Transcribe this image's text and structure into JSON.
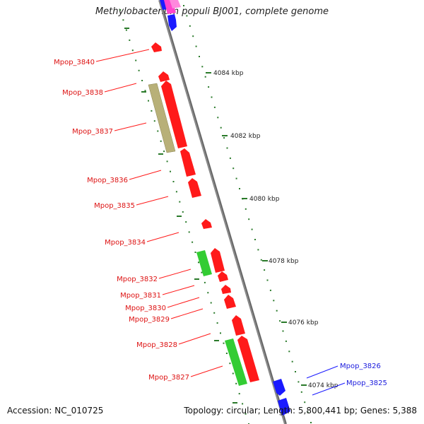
{
  "title": "Methylobacterium populi BJ001, complete genome",
  "footer": {
    "accession": "Accession: NC_010725",
    "summary": "Topology: circular; Length: 5,800,441 bp; Genes: 5,388"
  },
  "ticks": [
    "4084 kbp",
    "4082 kbp",
    "4080 kbp",
    "4078 kbp",
    "4076 kbp",
    "4074 kbp"
  ],
  "genes": [
    {
      "id": "Mpop_3840",
      "strand": "reverse",
      "color": "#ff1a1a"
    },
    {
      "id": "Mpop_3838",
      "strand": "reverse",
      "color": "#ff1a1a"
    },
    {
      "id": "Mpop_3837",
      "strand": "reverse",
      "color": "#ff1a1a"
    },
    {
      "id": "Mpop_3836",
      "strand": "reverse",
      "color": "#ff1a1a"
    },
    {
      "id": "Mpop_3835",
      "strand": "reverse",
      "color": "#ff1a1a"
    },
    {
      "id": "Mpop_3834",
      "strand": "reverse",
      "color": "#ff1a1a"
    },
    {
      "id": "Mpop_3832",
      "strand": "reverse",
      "color": "#ff1a1a"
    },
    {
      "id": "Mpop_3831",
      "strand": "reverse",
      "color": "#ff1a1a"
    },
    {
      "id": "Mpop_3830",
      "strand": "reverse",
      "color": "#ff1a1a"
    },
    {
      "id": "Mpop_3829",
      "strand": "reverse",
      "color": "#ff1a1a"
    },
    {
      "id": "Mpop_3828",
      "strand": "reverse",
      "color": "#ff1a1a"
    },
    {
      "id": "Mpop_3827",
      "strand": "reverse",
      "color": "#ff1a1a"
    },
    {
      "id": "Mpop_3826",
      "strand": "forward",
      "color": "#1a1aff"
    },
    {
      "id": "Mpop_3825",
      "strand": "forward",
      "color": "#1a1aff"
    }
  ],
  "feature_colors": {
    "cds_reverse": "#ff1a1a",
    "cds_forward": "#1a1aff",
    "rna_like": "#33cc33",
    "other": "#b8b078",
    "pink": "#ff44cc",
    "backbone": "#777777",
    "tick_marks": "#2a7a2a"
  }
}
